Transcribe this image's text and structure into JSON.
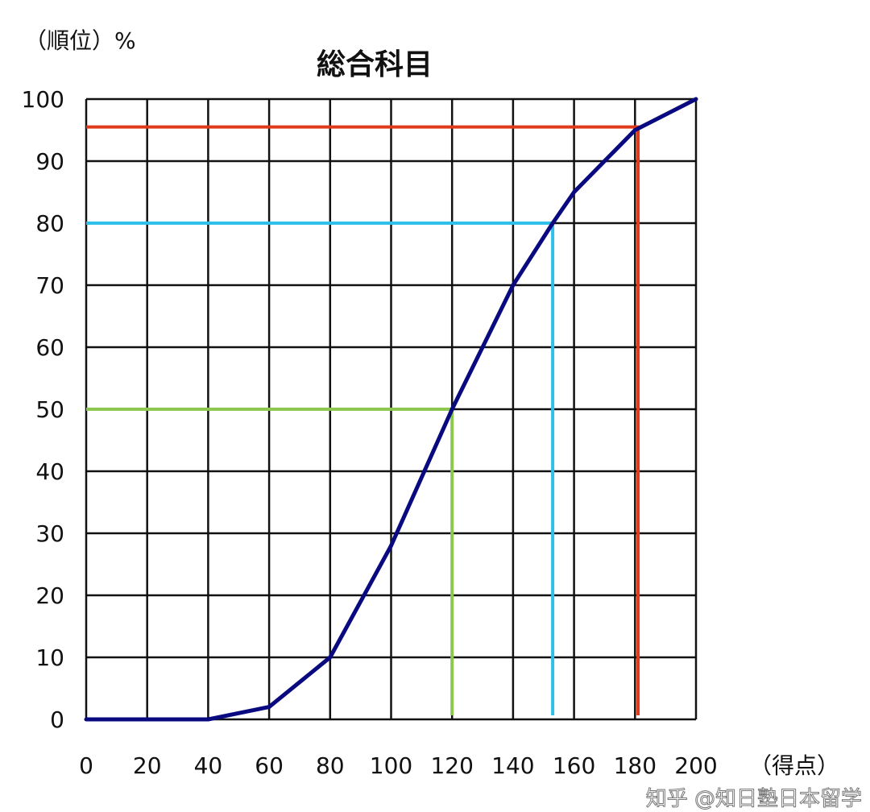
{
  "chart_data": {
    "type": "line",
    "title": "総合科目",
    "ylabel": "（順位）%",
    "xlabel": "（得点）",
    "xlim": [
      0,
      200
    ],
    "ylim": [
      0,
      100
    ],
    "grid": true,
    "x_ticks": [
      0,
      20,
      40,
      60,
      80,
      100,
      120,
      140,
      160,
      180,
      200
    ],
    "y_ticks": [
      0,
      10,
      20,
      30,
      40,
      50,
      60,
      70,
      80,
      90,
      100
    ],
    "series": [
      {
        "color": "#0a0a80",
        "x": [
          0,
          40,
          60,
          80,
          100,
          120,
          140,
          153,
          160,
          180,
          200
        ],
        "y": [
          0,
          0,
          2,
          10,
          28,
          50,
          70,
          80,
          85,
          95,
          100
        ]
      }
    ],
    "reference_lines": [
      {
        "color": "#e03a1a",
        "x": 181,
        "y": 95.5
      },
      {
        "color": "#2ec0ea",
        "x": 153,
        "y": 80
      },
      {
        "color": "#8cc850",
        "x": 120,
        "y": 50
      }
    ]
  },
  "watermark": "知乎 @知日塾日本留学"
}
